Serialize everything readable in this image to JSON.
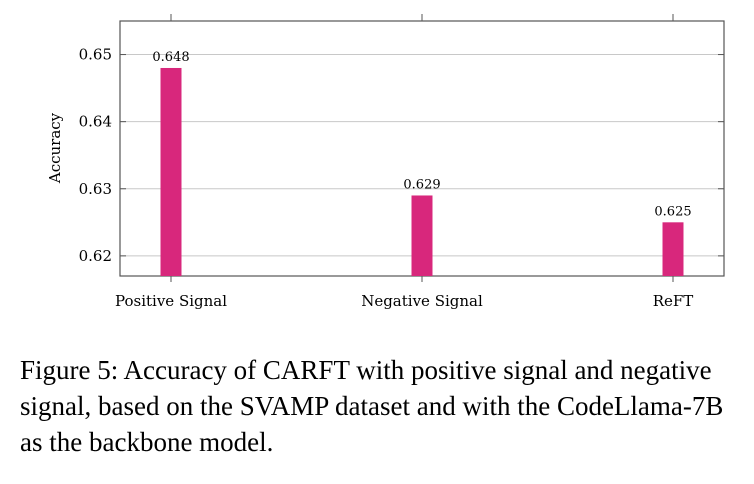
{
  "chart_data": {
    "type": "bar",
    "categories": [
      "Positive Signal",
      "Negative Signal",
      "ReFT"
    ],
    "values": [
      0.648,
      0.629,
      0.625
    ],
    "data_labels": [
      "0.648",
      "0.629",
      "0.625"
    ],
    "ylabel": "Accuracy",
    "xlabel": "",
    "yticks": [
      0.62,
      0.63,
      0.64,
      0.65
    ],
    "ytick_labels": [
      "0.62",
      "0.63",
      "0.64",
      "0.65"
    ],
    "ylim": [
      0.617,
      0.655
    ],
    "grid": "horizontal",
    "bar_color": "#d8277c"
  },
  "caption": "Figure 5: Accuracy of CARFT with positive signal and negative signal, based on the SVAMP dataset and with the CodeLlama-7B as the backbone model."
}
